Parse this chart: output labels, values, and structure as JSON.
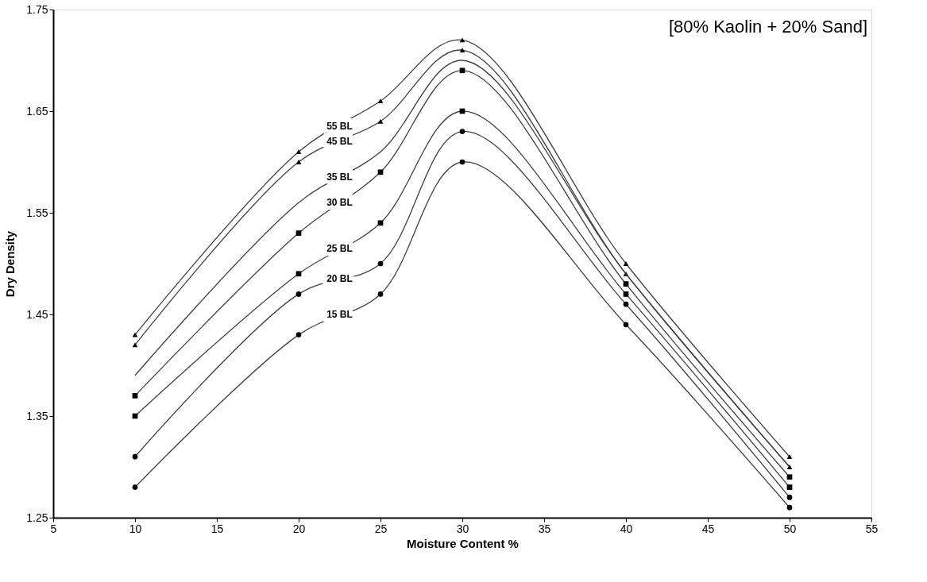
{
  "chart_data": {
    "type": "line",
    "xlabel": "Moisture Content %",
    "ylabel": "Dry Density",
    "annotations": [
      "[80% Kaolin + 20% Sand]"
    ],
    "x": [
      10,
      20,
      25,
      30,
      40,
      50
    ],
    "series": [
      {
        "name": "55 BL",
        "color": "#404040",
        "marker": "triangle",
        "values": [
          1.43,
          1.61,
          1.66,
          1.72,
          1.5,
          1.31
        ]
      },
      {
        "name": "45 BL",
        "color": "#404040",
        "marker": "triangle",
        "values": [
          1.42,
          1.6,
          1.64,
          1.71,
          1.49,
          1.3
        ]
      },
      {
        "name": "35 BL",
        "color": "#404040",
        "marker": "none",
        "values": [
          1.39,
          1.56,
          1.61,
          1.7,
          1.49,
          1.3
        ]
      },
      {
        "name": "30 BL",
        "color": "#404040",
        "marker": "square",
        "values": [
          1.37,
          1.53,
          1.59,
          1.69,
          1.48,
          1.29
        ]
      },
      {
        "name": "25 BL",
        "color": "#404040",
        "marker": "square",
        "values": [
          1.35,
          1.49,
          1.54,
          1.65,
          1.47,
          1.28
        ]
      },
      {
        "name": "20 BL",
        "color": "#404040",
        "marker": "circle",
        "values": [
          1.31,
          1.47,
          1.5,
          1.63,
          1.46,
          1.27
        ]
      },
      {
        "name": "15 BL",
        "color": "#404040",
        "marker": "circle",
        "values": [
          1.28,
          1.43,
          1.47,
          1.6,
          1.44,
          1.26
        ]
      }
    ],
    "xlim": [
      5,
      55
    ],
    "xticks": [
      5,
      10,
      15,
      20,
      25,
      30,
      35,
      40,
      45,
      50,
      55
    ],
    "ylim": [
      1.25,
      1.75
    ],
    "yticks": [
      1.25,
      1.35,
      1.45,
      1.55,
      1.65,
      1.75
    ],
    "grid": false,
    "legend": false,
    "line_style": "solid"
  }
}
